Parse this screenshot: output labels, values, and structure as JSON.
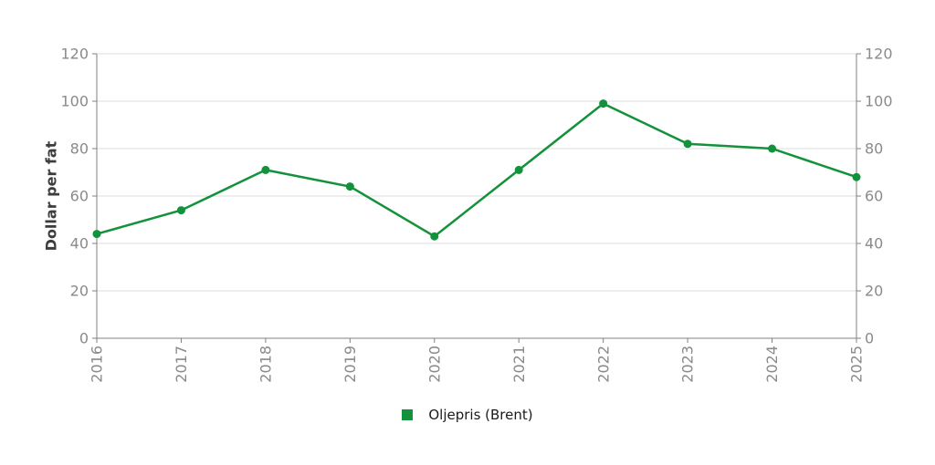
{
  "chart_data": {
    "type": "line",
    "title": "",
    "x": [
      "2016",
      "2017",
      "2018",
      "2019",
      "2020",
      "2021",
      "2022",
      "2023",
      "2024",
      "2025"
    ],
    "series": [
      {
        "name": "Oljepris (Brent)",
        "color": "#12923a",
        "marker": "circle",
        "values": [
          44,
          54,
          71,
          64,
          43,
          71,
          99,
          82,
          80,
          68
        ]
      }
    ],
    "xlabel": "",
    "ylabel": "Dollar per fat",
    "ylim": [
      0,
      120
    ],
    "yticks": [
      0,
      20,
      40,
      60,
      80,
      100,
      120
    ],
    "y_axis_right_mirror": true,
    "grid": "horizontal",
    "legend_position": "bottom-center"
  },
  "colors": {
    "series_green": "#12923a",
    "gridline": "#dcdcdc",
    "axis": "#808080",
    "tick_label": "#8a8a8a",
    "axis_title": "#3d3d3d",
    "legend_text": "#1a1a1a",
    "background": "#ffffff"
  }
}
